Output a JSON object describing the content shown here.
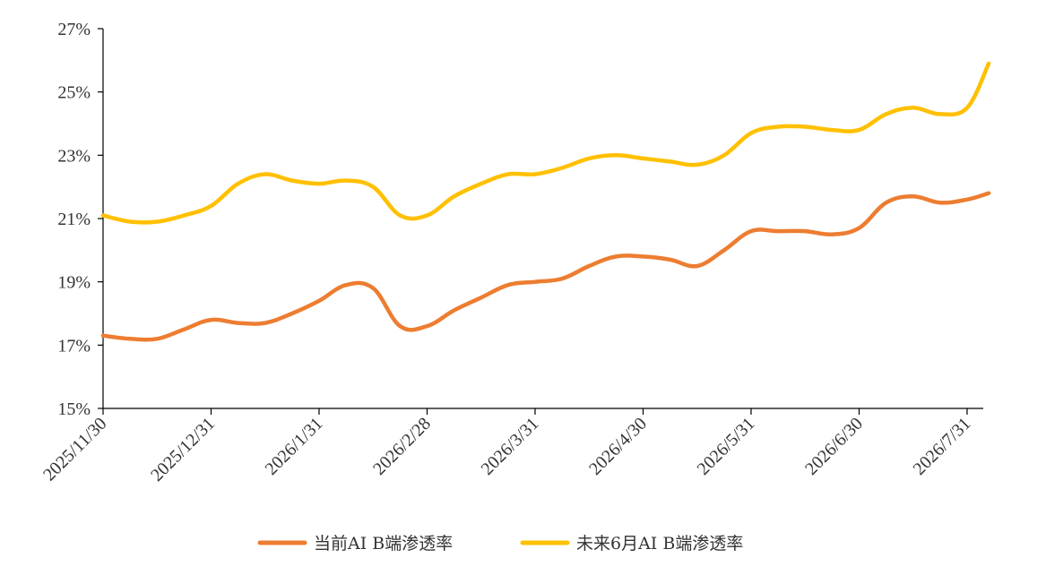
{
  "chart_data": {
    "type": "line",
    "title": "",
    "xlabel": "",
    "ylabel": "",
    "ylim": [
      15,
      27
    ],
    "yticks": [
      "15%",
      "17%",
      "19%",
      "21%",
      "23%",
      "25%",
      "27%"
    ],
    "ytick_values": [
      15,
      17,
      19,
      21,
      23,
      25,
      27
    ],
    "xlim": [
      0,
      8.2
    ],
    "xticks": [
      "2025/11/30",
      "2025/12/31",
      "2026/1/31",
      "2026/2/28",
      "2026/3/31",
      "2026/4/30",
      "2026/5/31",
      "2026/6/30",
      "2026/7/31"
    ],
    "xtick_values": [
      0,
      1,
      2,
      3,
      4,
      5,
      6,
      7,
      8
    ],
    "grid": false,
    "legend_position": "bottom",
    "series": [
      {
        "name": "当前AI B端渗透率",
        "color": "#ED7D31",
        "x": [
          0,
          0.25,
          0.5,
          0.75,
          1.0,
          1.25,
          1.5,
          1.75,
          2.0,
          2.25,
          2.5,
          2.75,
          3.0,
          3.25,
          3.5,
          3.75,
          4.0,
          4.25,
          4.5,
          4.75,
          5.0,
          5.25,
          5.5,
          5.75,
          6.0,
          6.25,
          6.5,
          6.75,
          7.0,
          7.25,
          7.5,
          7.75,
          8.0,
          8.2
        ],
        "values": [
          17.3,
          17.2,
          17.2,
          17.5,
          17.8,
          17.7,
          17.7,
          18.0,
          18.4,
          18.9,
          18.8,
          17.6,
          17.6,
          18.1,
          18.5,
          18.9,
          19.0,
          19.1,
          19.5,
          19.8,
          19.8,
          19.7,
          19.5,
          20.0,
          20.6,
          20.6,
          20.6,
          20.5,
          20.7,
          21.5,
          21.7,
          21.5,
          21.6,
          21.8
        ]
      },
      {
        "name": "未来6月AI B端渗透率",
        "color": "#FFC000",
        "x": [
          0,
          0.25,
          0.5,
          0.75,
          1.0,
          1.25,
          1.5,
          1.75,
          2.0,
          2.25,
          2.5,
          2.75,
          3.0,
          3.25,
          3.5,
          3.75,
          4.0,
          4.25,
          4.5,
          4.75,
          5.0,
          5.25,
          5.5,
          5.75,
          6.0,
          6.25,
          6.5,
          6.75,
          7.0,
          7.25,
          7.5,
          7.75,
          8.0,
          8.2
        ],
        "values": [
          21.1,
          20.9,
          20.9,
          21.1,
          21.4,
          22.1,
          22.4,
          22.2,
          22.1,
          22.2,
          22.0,
          21.1,
          21.1,
          21.7,
          22.1,
          22.4,
          22.4,
          22.6,
          22.9,
          23.0,
          22.9,
          22.8,
          22.7,
          23.0,
          23.7,
          23.9,
          23.9,
          23.8,
          23.8,
          24.3,
          24.5,
          24.3,
          24.5,
          25.9
        ]
      }
    ]
  }
}
